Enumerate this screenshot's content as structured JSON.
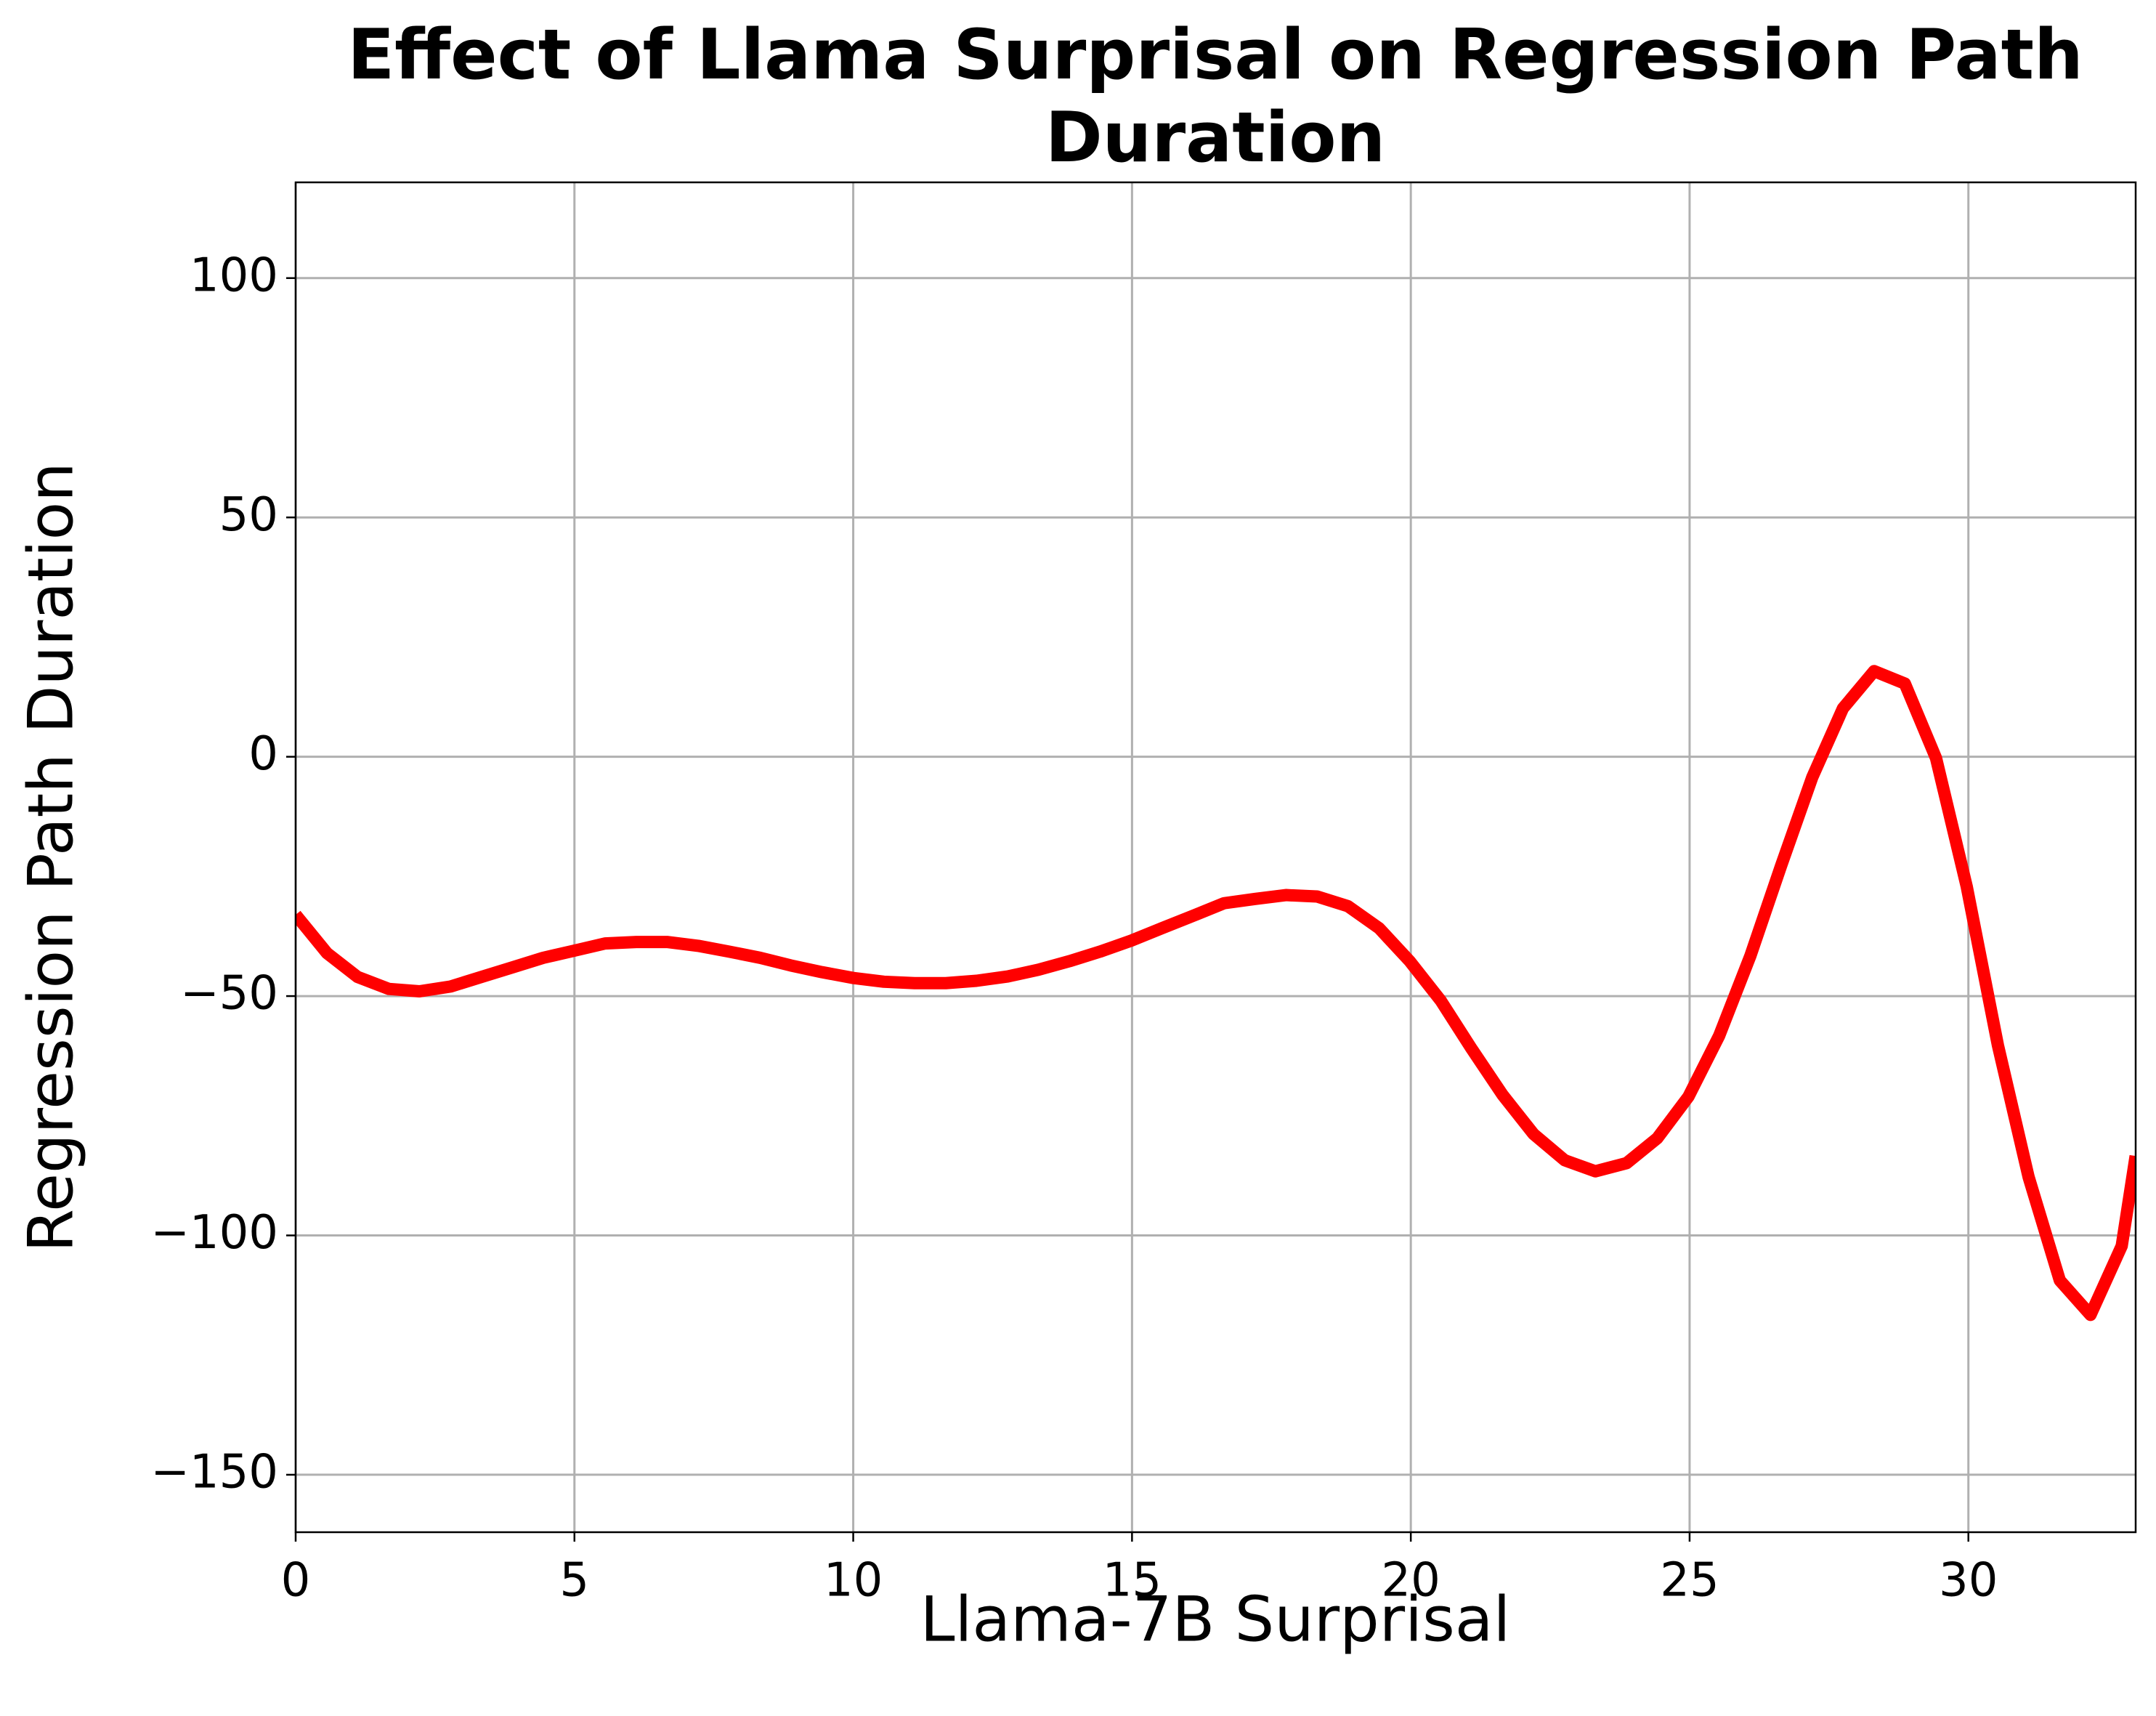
{
  "chart_data": {
    "type": "line",
    "title": "Effect of Llama Surprisal on Regression Path Duration",
    "x_label": "Llama-7B Surprisal",
    "y_label": "Regression Path Duration",
    "x": [
      0,
      0.56,
      1.11,
      1.67,
      2.22,
      2.78,
      3.33,
      3.89,
      4.44,
      5.0,
      5.55,
      6.11,
      6.66,
      7.22,
      7.77,
      8.33,
      8.88,
      9.44,
      9.99,
      10.55,
      11.1,
      11.66,
      12.21,
      12.77,
      13.32,
      13.88,
      14.43,
      14.99,
      15.54,
      16.1,
      16.65,
      17.21,
      17.76,
      18.32,
      18.87,
      19.43,
      19.98,
      20.54,
      21.09,
      21.65,
      22.2,
      22.76,
      23.31,
      23.87,
      24.42,
      24.98,
      25.53,
      26.09,
      26.64,
      27.2,
      27.75,
      28.31,
      28.86,
      29.42,
      29.97,
      30.53,
      31.08,
      31.64,
      32.19,
      32.75,
      33
    ],
    "series": [
      {
        "color": "#ff0000",
        "values": [
          -33,
          -41,
          -46,
          -48.5,
          -49,
          -48,
          -46,
          -44,
          -42,
          -40.5,
          -39,
          -38.7,
          -38.7,
          -39.5,
          -40.7,
          -42,
          -43.6,
          -45,
          -46.2,
          -47,
          -47.3,
          -47.3,
          -46.8,
          -45.9,
          -44.5,
          -42.7,
          -40.7,
          -38.4,
          -35.8,
          -33.2,
          -30.6,
          -29.7,
          -28.9,
          -29.2,
          -31.2,
          -35.8,
          -42.7,
          -51,
          -61,
          -70.7,
          -78.8,
          -84.3,
          -86.6,
          -84.9,
          -79.7,
          -71,
          -58.3,
          -41.6,
          -22.8,
          -4.3,
          10.1,
          17.9,
          15.3,
          -0.3,
          -27.1,
          -60.3,
          -87.8,
          -109.4,
          -116.6,
          -102.2,
          -83.4
        ]
      }
    ],
    "xlim": [
      0,
      33
    ],
    "ylim": [
      -162,
      120
    ],
    "xticks": [
      0,
      5,
      10,
      15,
      20,
      25,
      30
    ],
    "yticks": [
      {
        "value": -150,
        "label": "−150"
      },
      {
        "value": -100,
        "label": "−100"
      },
      {
        "value": -50,
        "label": "−50"
      },
      0,
      50,
      100
    ],
    "grid": true
  }
}
